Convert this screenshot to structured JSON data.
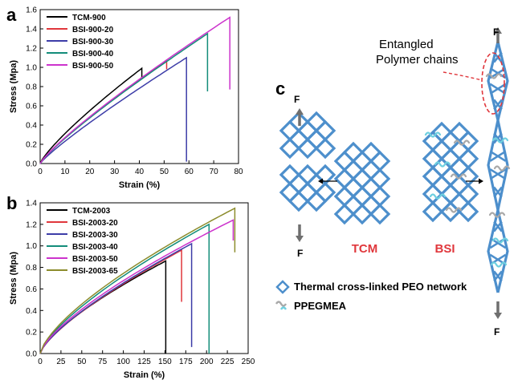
{
  "panels": {
    "a": "a",
    "b": "b",
    "c": "c"
  },
  "chart_data": [
    {
      "type": "line",
      "panel": "a",
      "xlabel": "Strain (%)",
      "ylabel": "Stress (Mpa)",
      "xlim": [
        0,
        80
      ],
      "ylim": [
        0.0,
        1.6
      ],
      "xticks": [
        "0",
        "10",
        "20",
        "30",
        "40",
        "50",
        "60",
        "70",
        "80"
      ],
      "yticks": [
        "0.0",
        "0.2",
        "0.4",
        "0.6",
        "0.8",
        "1.0",
        "1.2",
        "1.4",
        "1.6"
      ],
      "legend_position": "top-left",
      "series": [
        {
          "name": "TCM-900",
          "color": "#000000",
          "break_x": 41,
          "peak_y": 0.99,
          "final_y": 0.88
        },
        {
          "name": "BSI-900-20",
          "color": "#e0373c",
          "break_x": 51,
          "peak_y": 1.07,
          "final_y": 0.98
        },
        {
          "name": "BSI-900-30",
          "color": "#3d3da8",
          "break_x": 59,
          "peak_y": 1.1,
          "final_y": 0.02
        },
        {
          "name": "BSI-900-40",
          "color": "#138d7a",
          "break_x": 67.5,
          "peak_y": 1.35,
          "final_y": 0.75
        },
        {
          "name": "BSI-900-50",
          "color": "#cc33cc",
          "break_x": 76.5,
          "peak_y": 1.52,
          "final_y": 0.77
        }
      ]
    },
    {
      "type": "line",
      "panel": "b",
      "xlabel": "Strain (%)",
      "ylabel": "Stress (Mpa)",
      "xlim": [
        0,
        250
      ],
      "ylim": [
        0.0,
        1.4
      ],
      "xticks": [
        "0",
        "25",
        "50",
        "75",
        "100",
        "125",
        "150",
        "175",
        "200",
        "225",
        "250"
      ],
      "yticks": [
        "0.0",
        "0.2",
        "0.4",
        "0.6",
        "0.8",
        "1.0",
        "1.2",
        "1.4"
      ],
      "legend_position": "top-left",
      "series": [
        {
          "name": "TCM-2003",
          "color": "#000000",
          "break_x": 151,
          "peak_y": 0.86,
          "final_y": 0.0
        },
        {
          "name": "BSI-2003-20",
          "color": "#e0373c",
          "break_x": 170,
          "peak_y": 0.96,
          "final_y": 0.48
        },
        {
          "name": "BSI-2003-30",
          "color": "#3d3da8",
          "break_x": 182,
          "peak_y": 1.02,
          "final_y": 0.06
        },
        {
          "name": "BSI-2003-40",
          "color": "#138d7a",
          "break_x": 203,
          "peak_y": 1.2,
          "final_y": 0.0
        },
        {
          "name": "BSI-2003-50",
          "color": "#cc33cc",
          "break_x": 232,
          "peak_y": 1.24,
          "final_y": 1.05
        },
        {
          "name": "BSI-2003-65",
          "color": "#8c8c2c",
          "break_x": 234,
          "peak_y": 1.35,
          "final_y": 0.94
        }
      ]
    }
  ],
  "diagram": {
    "force_label": "F",
    "tcm_label": "TCM",
    "bsi_label": "BSI",
    "entangled_title_line1": "Entangled",
    "entangled_title_line2": "Polymer chains",
    "legend_network": "Thermal cross-linked PEO network",
    "legend_polymer": "PPEGMEA",
    "network_color": "#4d8fcc",
    "polymer_color_grey": "#a9a9a9",
    "polymer_color_cyan": "#6fd0e0",
    "red_color": "#e0373c"
  }
}
